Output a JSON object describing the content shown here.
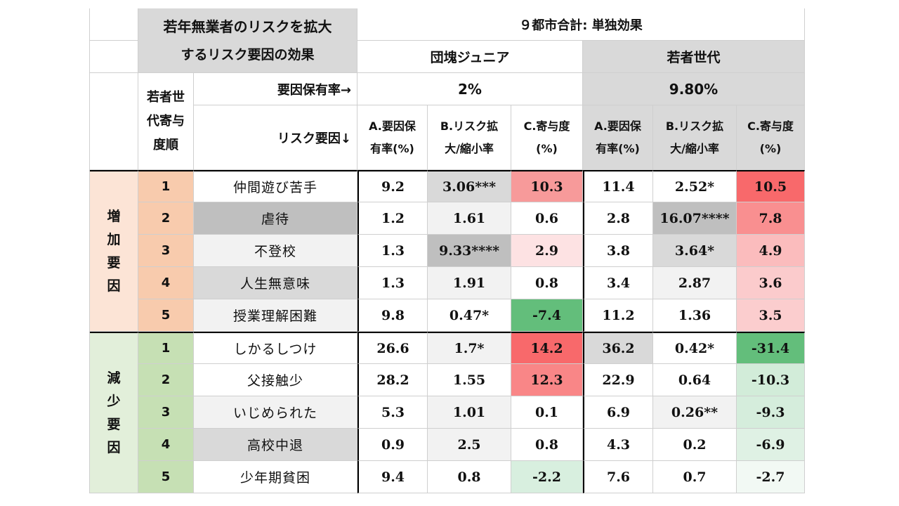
{
  "title_line1": "若年無業者のリスクを拡大",
  "title_line2": "するリスク要因の効果",
  "top_header": "９都市合計: 単独効果",
  "group1": {
    "name": "団塊ジュニア",
    "rate": "2%"
  },
  "group2": {
    "name": "若者世代",
    "rate": "9.80%"
  },
  "rank_header": [
    "若者世",
    "代寄与",
    "度順"
  ],
  "rate_label": "要因保有率→",
  "factor_label": "リスク要因↓",
  "col_a": [
    "A.要因保",
    "有率(%)"
  ],
  "col_b": [
    "B.リスク拡",
    "大/縮小率"
  ],
  "col_c": [
    "C.寄与度",
    "(%)"
  ],
  "side_increase": [
    "増",
    "加",
    "要",
    "因"
  ],
  "side_decrease": [
    "減",
    "少",
    "要",
    "因"
  ],
  "rows": [
    {
      "rank": "1",
      "factor": "仲間遊び苦手",
      "g1a": "9.2",
      "g1b": "3.06***",
      "g1c": "10.3",
      "g2a": "11.4",
      "g2b": "2.52*",
      "g2c": "10.5"
    },
    {
      "rank": "2",
      "factor": "虐待",
      "g1a": "1.2",
      "g1b": "1.61",
      "g1c": "0.6",
      "g2a": "2.8",
      "g2b": "16.07****",
      "g2c": "7.8"
    },
    {
      "rank": "3",
      "factor": "不登校",
      "g1a": "1.3",
      "g1b": "9.33****",
      "g1c": "2.9",
      "g2a": "3.8",
      "g2b": "3.64*",
      "g2c": "4.9"
    },
    {
      "rank": "4",
      "factor": "人生無意味",
      "g1a": "1.3",
      "g1b": "1.91",
      "g1c": "0.8",
      "g2a": "3.4",
      "g2b": "2.87",
      "g2c": "3.6"
    },
    {
      "rank": "5",
      "factor": "授業理解困難",
      "g1a": "9.8",
      "g1b": "0.47*",
      "g1c": "-7.4",
      "g2a": "11.2",
      "g2b": "1.36",
      "g2c": "3.5"
    },
    {
      "rank": "1",
      "factor": "しかるしつけ",
      "g1a": "26.6",
      "g1b": "1.7*",
      "g1c": "14.2",
      "g2a": "36.2",
      "g2b": "0.42*",
      "g2c": "-31.4"
    },
    {
      "rank": "2",
      "factor": "父接触少",
      "g1a": "28.2",
      "g1b": "1.55",
      "g1c": "12.3",
      "g2a": "22.9",
      "g2b": "0.64",
      "g2c": "-10.3"
    },
    {
      "rank": "3",
      "factor": "いじめられた",
      "g1a": "5.3",
      "g1b": "1.01",
      "g1c": "0.1",
      "g2a": "6.9",
      "g2b": "0.26**",
      "g2c": "-9.3"
    },
    {
      "rank": "4",
      "factor": "高校中退",
      "g1a": "0.9",
      "g1b": "2.5",
      "g1c": "0.8",
      "g2a": "4.3",
      "g2b": "0.2",
      "g2c": "-6.9"
    },
    {
      "rank": "5",
      "factor": "少年期貧困",
      "g1a": "9.4",
      "g1b": "0.8",
      "g1c": "-2.2",
      "g2a": "7.6",
      "g2b": "0.7",
      "g2c": "-2.7"
    }
  ],
  "colors": {
    "header_gray": "#d9d9d9",
    "increase_orange": "#f8cbad",
    "increase_light": "#fce4d6",
    "decrease_green": "#c6e0b4",
    "decrease_light": "#e2efda"
  }
}
